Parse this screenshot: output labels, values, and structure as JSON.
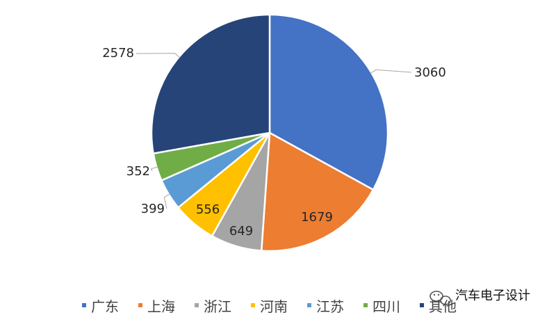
{
  "chart_data": {
    "type": "pie",
    "title": "",
    "series": [
      {
        "name": "",
        "categories": [
          "广东",
          "上海",
          "浙江",
          "河南",
          "江苏",
          "四川",
          "其他"
        ],
        "values": [
          3060,
          1679,
          649,
          556,
          399,
          352,
          2578
        ]
      }
    ],
    "colors": [
      "#4472C4",
      "#ED7D31",
      "#A5A5A5",
      "#FFC000",
      "#5B9BD5",
      "#70AD47",
      "#264478"
    ],
    "data_labels": [
      "3060",
      "1679",
      "649",
      "556",
      "399",
      "352",
      "2578"
    ],
    "legend": {
      "placement": "bottom",
      "entries": [
        "广东",
        "上海",
        "浙江",
        "河南",
        "江苏",
        "四川",
        "其他"
      ]
    }
  },
  "watermark": {
    "text": "汽车电子设计"
  }
}
